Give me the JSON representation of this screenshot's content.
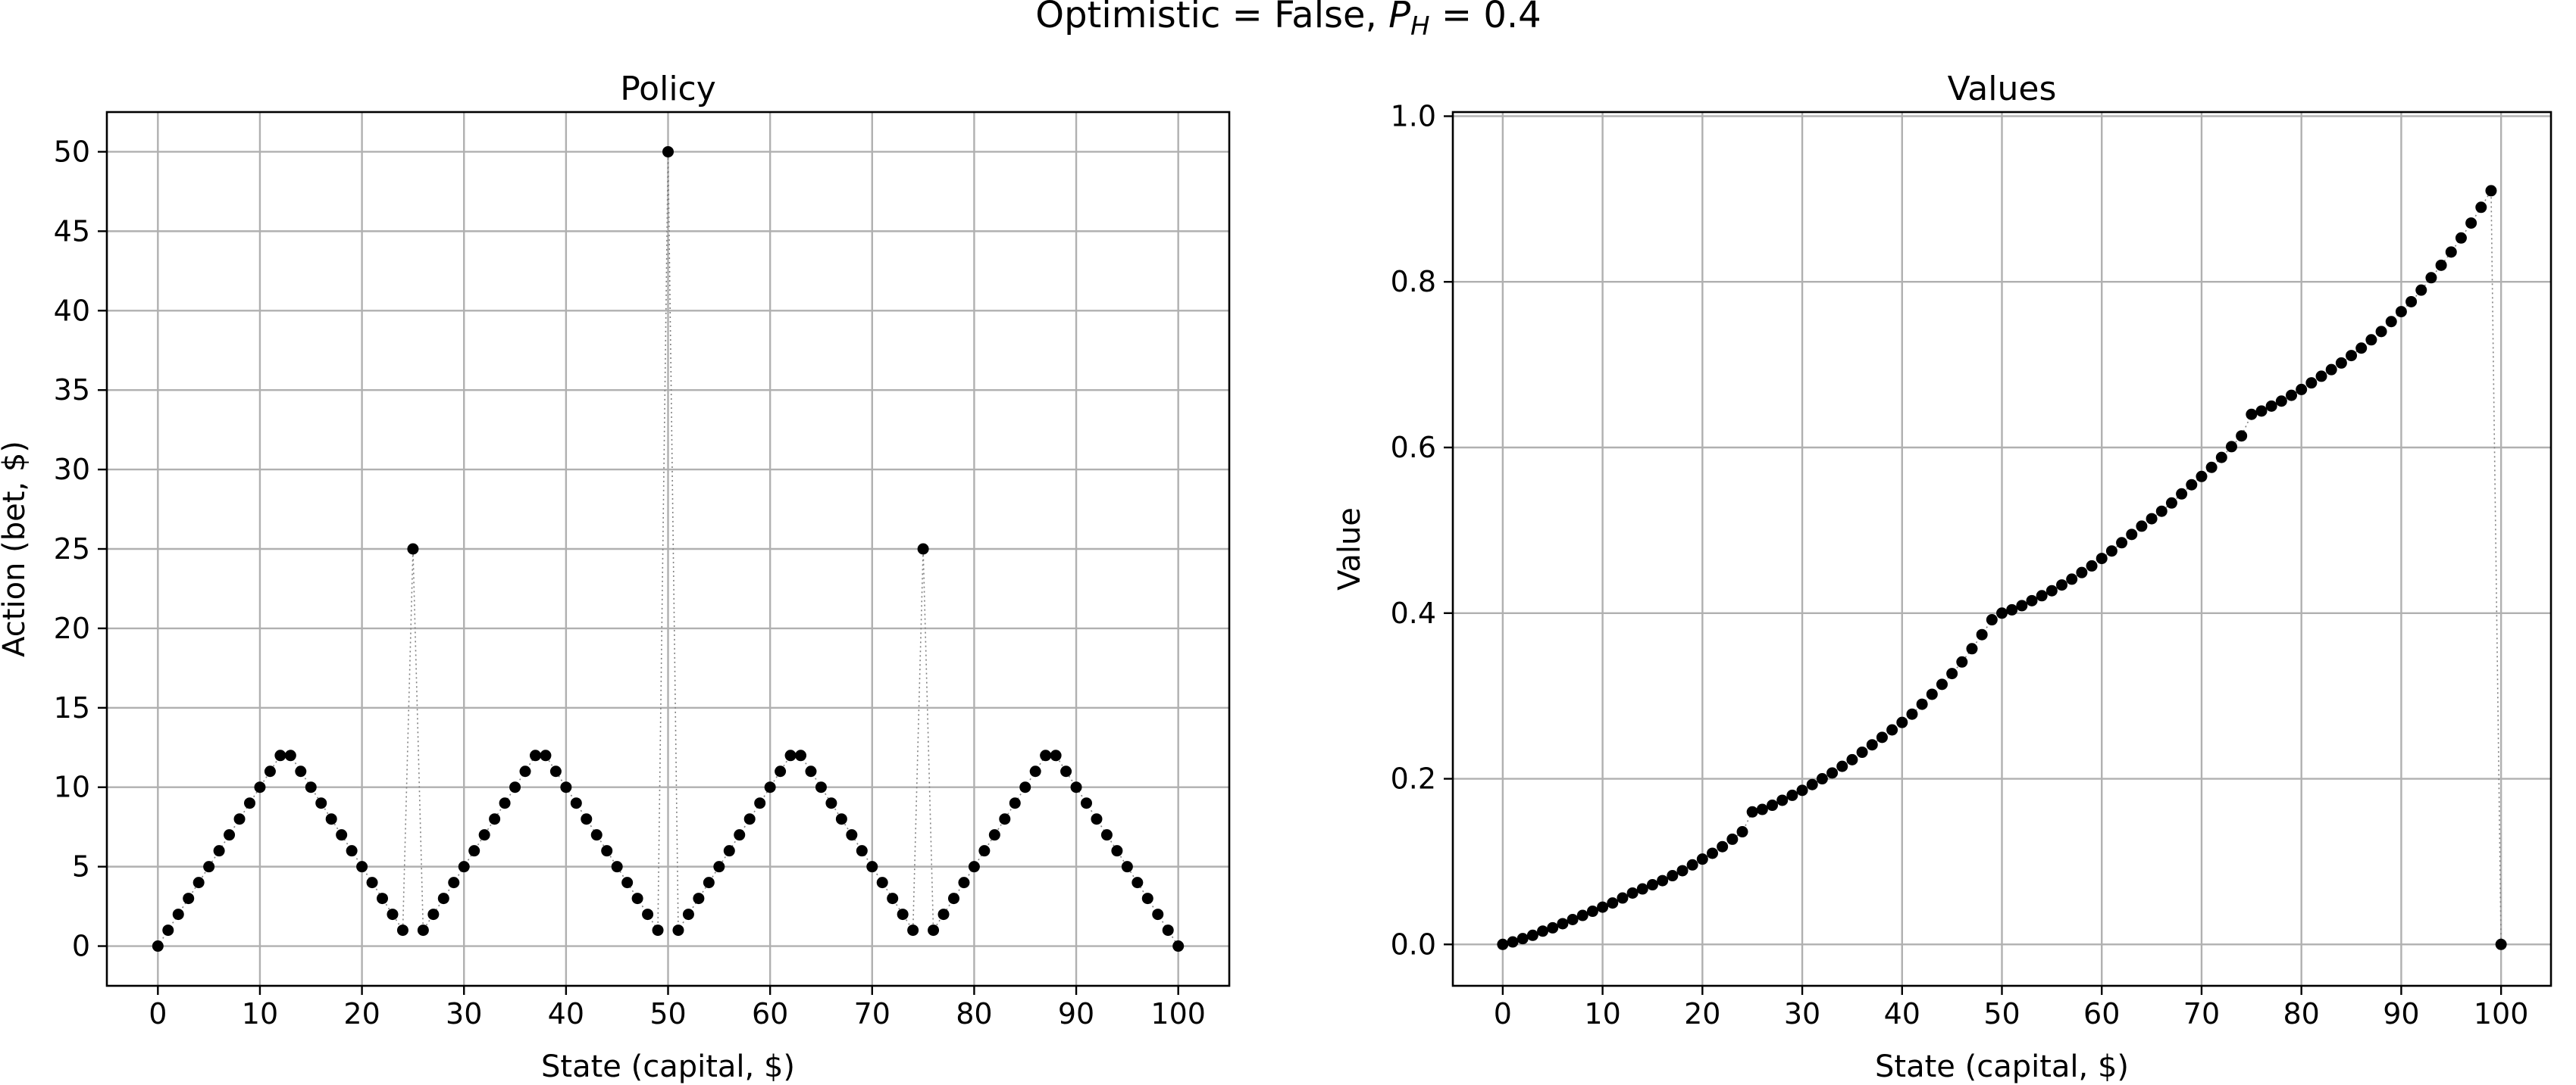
{
  "figure": {
    "suptitle_prefix": "Optimistic = False, ",
    "suptitle_var": "P",
    "suptitle_sub": "H",
    "suptitle_suffix": " = 0.4"
  },
  "chart_data": [
    {
      "type": "scatter",
      "title": "Policy",
      "xlabel": "State (capital, $)",
      "ylabel": "Action (bet, $)",
      "xlim": [
        -5,
        105
      ],
      "ylim": [
        -2.5,
        52.5
      ],
      "xticks": [
        0,
        10,
        20,
        30,
        40,
        50,
        60,
        70,
        80,
        90,
        100
      ],
      "yticks": [
        0,
        5,
        10,
        15,
        20,
        25,
        30,
        35,
        40,
        45,
        50
      ],
      "grid": true,
      "x": [
        0,
        1,
        2,
        3,
        4,
        5,
        6,
        7,
        8,
        9,
        10,
        11,
        12,
        13,
        14,
        15,
        16,
        17,
        18,
        19,
        20,
        21,
        22,
        23,
        24,
        25,
        26,
        27,
        28,
        29,
        30,
        31,
        32,
        33,
        34,
        35,
        36,
        37,
        38,
        39,
        40,
        41,
        42,
        43,
        44,
        45,
        46,
        47,
        48,
        49,
        50,
        51,
        52,
        53,
        54,
        55,
        56,
        57,
        58,
        59,
        60,
        61,
        62,
        63,
        64,
        65,
        66,
        67,
        68,
        69,
        70,
        71,
        72,
        73,
        74,
        75,
        76,
        77,
        78,
        79,
        80,
        81,
        82,
        83,
        84,
        85,
        86,
        87,
        88,
        89,
        90,
        91,
        92,
        93,
        94,
        95,
        96,
        97,
        98,
        99,
        100
      ],
      "y": [
        0,
        1,
        2,
        3,
        4,
        5,
        6,
        7,
        8,
        9,
        10,
        11,
        12,
        12,
        11,
        10,
        9,
        8,
        7,
        6,
        5,
        4,
        3,
        2,
        1,
        25,
        1,
        2,
        3,
        4,
        5,
        6,
        7,
        8,
        9,
        10,
        11,
        12,
        12,
        11,
        10,
        9,
        8,
        7,
        6,
        5,
        4,
        3,
        2,
        1,
        50,
        1,
        2,
        3,
        4,
        5,
        6,
        7,
        8,
        9,
        10,
        11,
        12,
        12,
        11,
        10,
        9,
        8,
        7,
        6,
        5,
        4,
        3,
        2,
        1,
        25,
        1,
        2,
        3,
        4,
        5,
        6,
        7,
        8,
        9,
        10,
        11,
        12,
        12,
        11,
        10,
        9,
        8,
        7,
        6,
        5,
        4,
        3,
        2,
        1,
        0
      ]
    },
    {
      "type": "scatter",
      "title": "Values",
      "xlabel": "State (capital, $)",
      "ylabel": "Value",
      "xlim": [
        -5,
        105
      ],
      "ylim": [
        -0.05,
        1.005
      ],
      "xticks": [
        0,
        10,
        20,
        30,
        40,
        50,
        60,
        70,
        80,
        90,
        100
      ],
      "yticks": [
        "0.0",
        "0.2",
        "0.4",
        "0.6",
        "0.8",
        "1.0"
      ],
      "grid": true,
      "x": [
        0,
        1,
        2,
        3,
        4,
        5,
        6,
        7,
        8,
        9,
        10,
        11,
        12,
        13,
        14,
        15,
        16,
        17,
        18,
        19,
        20,
        21,
        22,
        23,
        24,
        25,
        26,
        27,
        28,
        29,
        30,
        31,
        32,
        33,
        34,
        35,
        36,
        37,
        38,
        39,
        40,
        41,
        42,
        43,
        44,
        45,
        46,
        47,
        48,
        49,
        50,
        51,
        52,
        53,
        54,
        55,
        56,
        57,
        58,
        59,
        60,
        61,
        62,
        63,
        64,
        65,
        66,
        67,
        68,
        69,
        70,
        71,
        72,
        73,
        74,
        75,
        76,
        77,
        78,
        79,
        80,
        81,
        82,
        83,
        84,
        85,
        86,
        87,
        88,
        89,
        90,
        91,
        92,
        93,
        94,
        95,
        96,
        97,
        98,
        99,
        100
      ],
      "y": [
        0.0,
        0.003,
        0.007,
        0.011,
        0.016,
        0.02,
        0.025,
        0.03,
        0.035,
        0.04,
        0.045,
        0.05,
        0.056,
        0.062,
        0.067,
        0.072,
        0.077,
        0.083,
        0.089,
        0.096,
        0.103,
        0.11,
        0.118,
        0.127,
        0.136,
        0.16,
        0.163,
        0.168,
        0.174,
        0.18,
        0.186,
        0.193,
        0.2,
        0.207,
        0.215,
        0.223,
        0.232,
        0.241,
        0.25,
        0.259,
        0.268,
        0.278,
        0.29,
        0.302,
        0.314,
        0.327,
        0.341,
        0.357,
        0.374,
        0.392,
        0.4,
        0.404,
        0.409,
        0.415,
        0.421,
        0.427,
        0.434,
        0.441,
        0.449,
        0.457,
        0.466,
        0.475,
        0.485,
        0.495,
        0.505,
        0.514,
        0.523,
        0.533,
        0.544,
        0.555,
        0.565,
        0.576,
        0.588,
        0.601,
        0.614,
        0.64,
        0.644,
        0.65,
        0.656,
        0.663,
        0.67,
        0.678,
        0.686,
        0.694,
        0.702,
        0.711,
        0.72,
        0.73,
        0.74,
        0.752,
        0.764,
        0.776,
        0.79,
        0.805,
        0.82,
        0.836,
        0.853,
        0.871,
        0.89,
        0.91,
        0.0
      ]
    }
  ]
}
